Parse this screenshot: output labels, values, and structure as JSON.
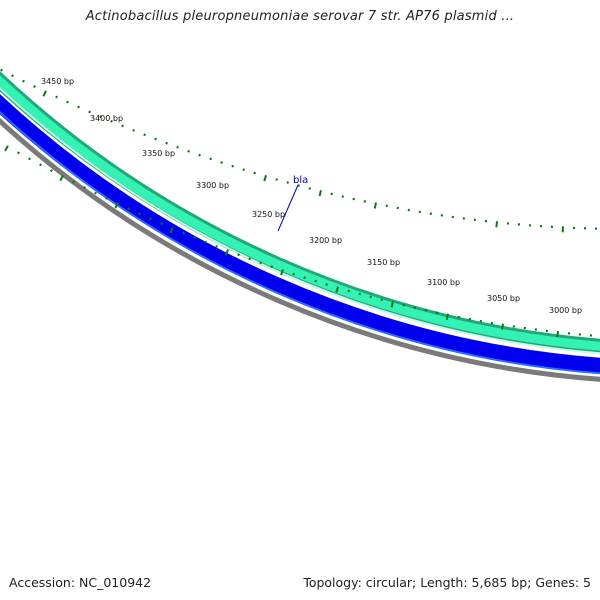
{
  "header": {
    "title": "Actinobacillus pleuropneumoniae serovar 7 str. AP76 plasmid ..."
  },
  "footer": {
    "accession": "Accession: NC_010942",
    "summary": "Topology: circular; Length: 5,685 bp; Genes: 5"
  },
  "map": {
    "tick_labels": [
      "3450 bp",
      "3400 bp",
      "3350 bp",
      "3300 bp",
      "3250 bp",
      "3200 bp",
      "3150 bp",
      "3100 bp",
      "3050 bp",
      "3000 bp"
    ],
    "gene_label": "bla",
    "colors": {
      "forward_track": "#1fa87a",
      "forward_fill": "#33f0b0",
      "reverse_track": "#0000ee",
      "backbone": "#7a7a7a",
      "ticks": "#0a7a0a",
      "gene_label": "#0000b0"
    }
  }
}
